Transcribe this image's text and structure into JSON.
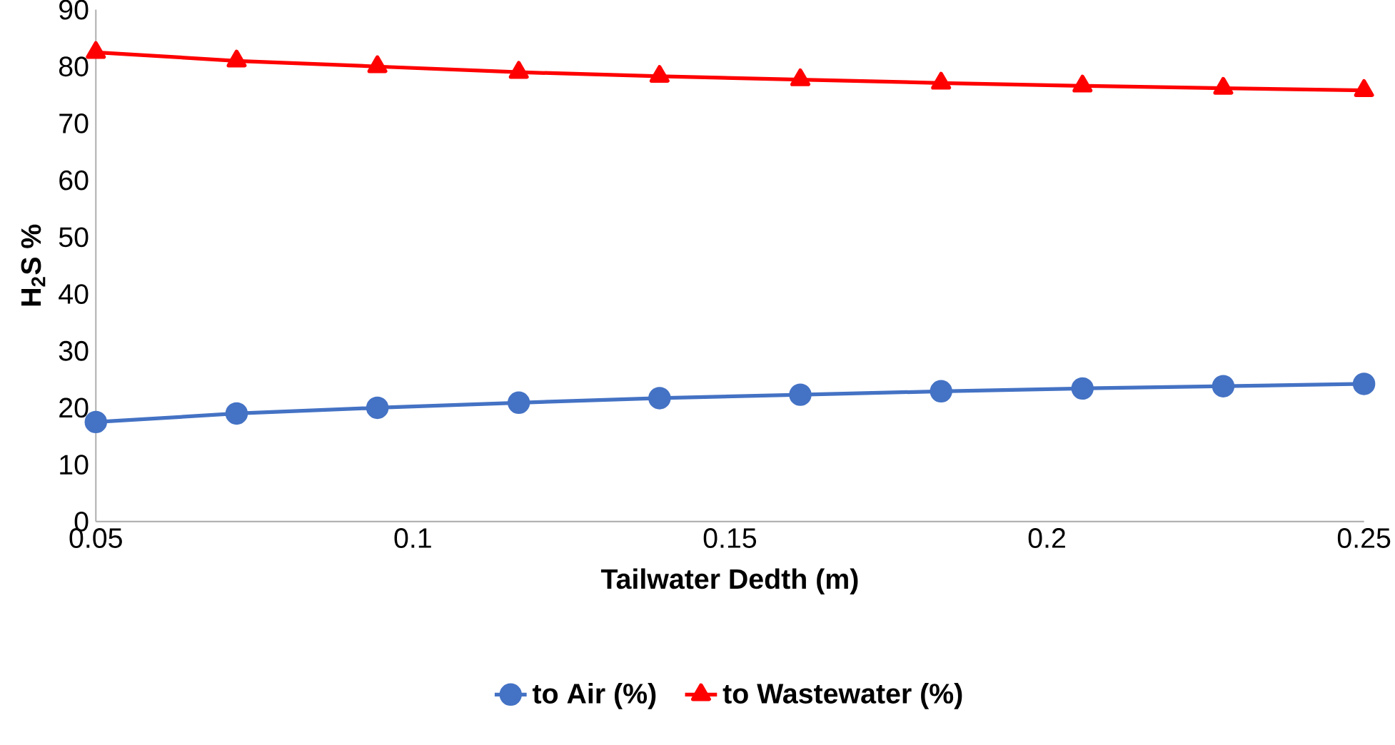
{
  "chart_data": {
    "type": "line",
    "xlabel": "Tailwater Dedth (m)",
    "ylabel": "H$_{2}$S %",
    "x": [
      0.05,
      0.0722,
      0.0944,
      0.1167,
      0.1389,
      0.1611,
      0.1833,
      0.2056,
      0.2278,
      0.25
    ],
    "series": [
      {
        "name": "to Air (%)",
        "color": "#4472c4",
        "marker": "circle",
        "values": [
          17.5,
          19,
          20,
          20.9,
          21.7,
          22.3,
          22.9,
          23.4,
          23.8,
          24.2
        ]
      },
      {
        "name": "to Wastewater (%)",
        "color": "#ff0000",
        "marker": "triangle",
        "values": [
          82.5,
          81,
          80,
          79,
          78.3,
          77.7,
          77.1,
          76.6,
          76.2,
          75.8
        ]
      }
    ],
    "xlim": [
      0.05,
      0.25
    ],
    "xticks": [
      0.05,
      0.1,
      0.15,
      0.2,
      0.25
    ],
    "ylim": [
      0,
      90
    ],
    "yticks": [
      0,
      10,
      20,
      30,
      40,
      50,
      60,
      70,
      80,
      90
    ],
    "grid": false,
    "legend": "bottom",
    "line_style": "solid"
  }
}
